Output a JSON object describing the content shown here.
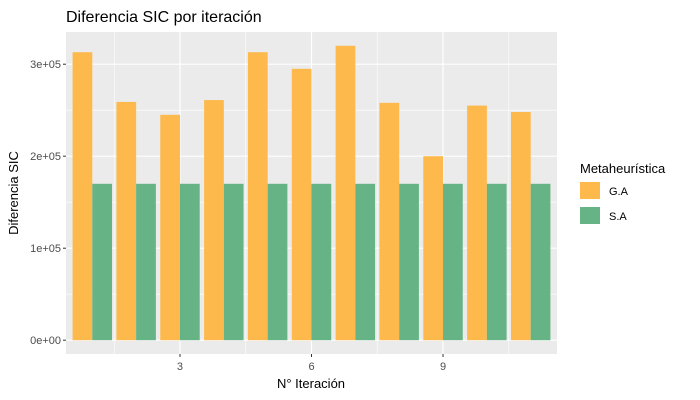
{
  "chart_data": {
    "type": "bar",
    "title": "Diferencia SIC por iteración",
    "xlabel": "N° Iteración",
    "ylabel": "Diferencia SIC",
    "x": [
      1,
      2,
      3,
      4,
      5,
      6,
      7,
      8,
      9,
      10,
      11
    ],
    "x_ticks": [
      3,
      6,
      9
    ],
    "x_tick_labels": [
      "3",
      "6",
      "9"
    ],
    "xlim": [
      0.4,
      11.6
    ],
    "ylim": [
      -15000,
      335000
    ],
    "y_ticks": [
      0,
      100000,
      200000,
      300000
    ],
    "y_tick_labels": [
      "0e+00",
      "1e+05",
      "2e+05",
      "3e+05"
    ],
    "grid": true,
    "legend": {
      "title": "Metaheurística",
      "placement": "right"
    },
    "series": [
      {
        "name": "G.A",
        "color": "#FDB94B",
        "values": [
          313000,
          259000,
          245000,
          261000,
          313000,
          295000,
          320000,
          258000,
          200000,
          255000,
          248000
        ]
      },
      {
        "name": "S.A",
        "color": "#66B386",
        "values": [
          170000,
          170000,
          170000,
          170000,
          170000,
          170000,
          170000,
          170000,
          170000,
          170000,
          170000
        ]
      }
    ]
  }
}
